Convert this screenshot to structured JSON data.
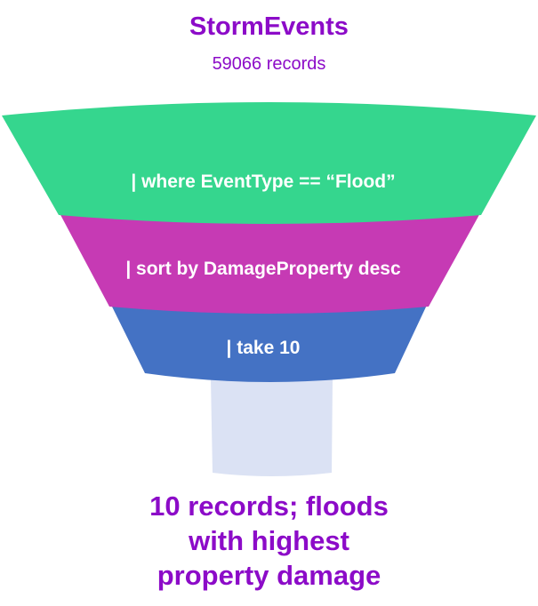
{
  "header": {
    "title": "StormEvents",
    "subtitle": "59066 records"
  },
  "stages": [
    {
      "label": "| where EventType == “Flood”"
    },
    {
      "label": "| sort by DamageProperty desc"
    },
    {
      "label": "| take 10"
    }
  ],
  "result": {
    "lines": [
      "10 records; floods",
      "with highest",
      "property damage"
    ]
  },
  "colors": {
    "title": "#8c0bc8",
    "stage_1": "#35d68e",
    "stage_2": "#c63ab4",
    "stage_3": "#4472c4",
    "output": "#dbe2f4"
  }
}
